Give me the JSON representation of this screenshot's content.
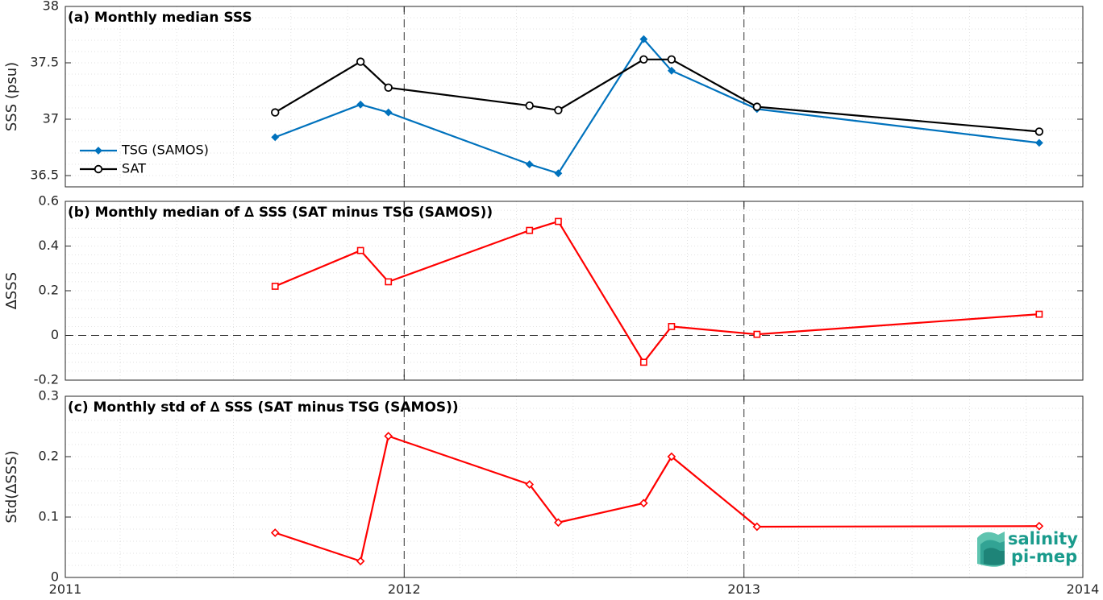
{
  "chart_data": [
    {
      "type": "line",
      "title": "(a) Monthly median SSS",
      "ylabel": "SSS (psu)",
      "xlim": [
        "2011-01-01",
        "2014-01-01"
      ],
      "ylim": [
        36.4,
        38
      ],
      "y_ticks": [
        36.5,
        37,
        37.5,
        38
      ],
      "y_tick_labels": [
        "36.5",
        "37",
        "37.5",
        "38"
      ],
      "grid": true,
      "legend_position": "left",
      "series": [
        {
          "name": "TSG (SAMOS)",
          "color": "#0072BD",
          "marker": "diamond-filled",
          "x": [
            "2011-08-15",
            "2011-11-15",
            "2011-12-15",
            "2012-05-15",
            "2012-06-15",
            "2012-09-15",
            "2012-10-15",
            "2013-01-15",
            "2013-11-15"
          ],
          "y": [
            36.84,
            37.13,
            37.06,
            36.6,
            36.52,
            37.71,
            37.43,
            37.09,
            36.79
          ]
        },
        {
          "name": "SAT",
          "color": "#000000",
          "marker": "circle-open",
          "x": [
            "2011-08-15",
            "2011-11-15",
            "2011-12-15",
            "2012-05-15",
            "2012-06-15",
            "2012-09-15",
            "2012-10-15",
            "2013-01-15",
            "2013-11-15"
          ],
          "y": [
            37.06,
            37.51,
            37.28,
            37.12,
            37.08,
            37.53,
            37.53,
            37.11,
            36.89
          ]
        }
      ]
    },
    {
      "type": "line",
      "title": "(b) Monthly median of ∆ SSS (SAT minus TSG (SAMOS))",
      "ylabel": "∆SSS",
      "xlim": [
        "2011-01-01",
        "2014-01-01"
      ],
      "ylim": [
        -0.2,
        0.6
      ],
      "y_ticks": [
        -0.2,
        0,
        0.2,
        0.4,
        0.6
      ],
      "y_tick_labels": [
        "-0.2",
        "0",
        "0.2",
        "0.4",
        "0.6"
      ],
      "grid": true,
      "zero_line": true,
      "series": [
        {
          "color": "#ff0000",
          "marker": "square-open",
          "x": [
            "2011-08-15",
            "2011-11-15",
            "2011-12-15",
            "2012-05-15",
            "2012-06-15",
            "2012-09-15",
            "2012-10-15",
            "2013-01-15",
            "2013-11-15"
          ],
          "y": [
            0.22,
            0.38,
            0.24,
            0.47,
            0.51,
            -0.12,
            0.04,
            0.005,
            0.095
          ]
        }
      ]
    },
    {
      "type": "line",
      "title": "(c) Monthly std of ∆ SSS (SAT minus TSG (SAMOS))",
      "ylabel": "Std(∆SSS)",
      "xlim": [
        "2011-01-01",
        "2014-01-01"
      ],
      "ylim": [
        0,
        0.3
      ],
      "y_ticks": [
        0,
        0.1,
        0.2,
        0.3
      ],
      "y_tick_labels": [
        "0",
        "0.1",
        "0.2",
        "0.3"
      ],
      "x_ticks": [
        "2011-01-01",
        "2012-01-01",
        "2013-01-01",
        "2014-01-01"
      ],
      "x_tick_labels": [
        "2011",
        "2012",
        "2013",
        "2014"
      ],
      "grid": true,
      "series": [
        {
          "color": "#ff0000",
          "marker": "diamond-open",
          "x": [
            "2011-08-15",
            "2011-11-15",
            "2011-12-15",
            "2012-05-15",
            "2012-06-15",
            "2012-09-15",
            "2012-10-15",
            "2013-01-15",
            "2013-11-15"
          ],
          "y": [
            0.074,
            0.027,
            0.234,
            0.154,
            0.091,
            0.123,
            0.2,
            0.084,
            0.085
          ]
        }
      ]
    }
  ],
  "logo": {
    "line1": "salinity",
    "line2": "pi-mep"
  }
}
